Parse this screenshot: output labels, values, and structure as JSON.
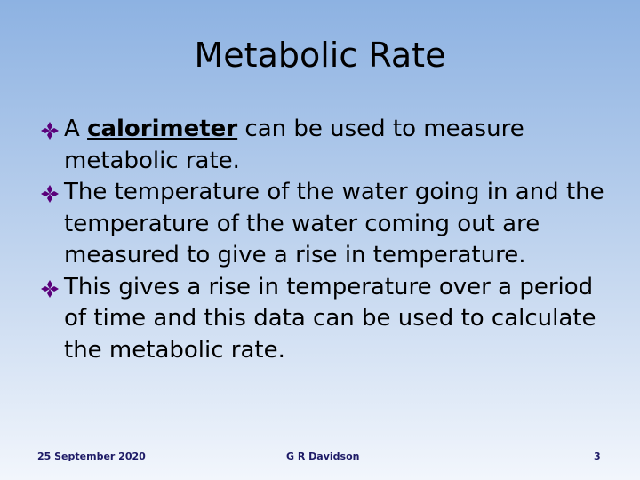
{
  "header": {
    "title": "Metabolic Rate"
  },
  "bullets": [
    {
      "before": "A",
      "term": "calorimeter",
      "after": "can be used to measure metabolic rate."
    },
    {
      "text": "The temperature of the water going in and the temperature of the water coming out are measured to give a rise in temperature."
    },
    {
      "text": "This gives a rise in temperature over a period of time and this data can be used to calculate the metabolic rate."
    }
  ],
  "footer": {
    "date": "25 September 2020",
    "author": "G R Davidson",
    "page": "3"
  }
}
